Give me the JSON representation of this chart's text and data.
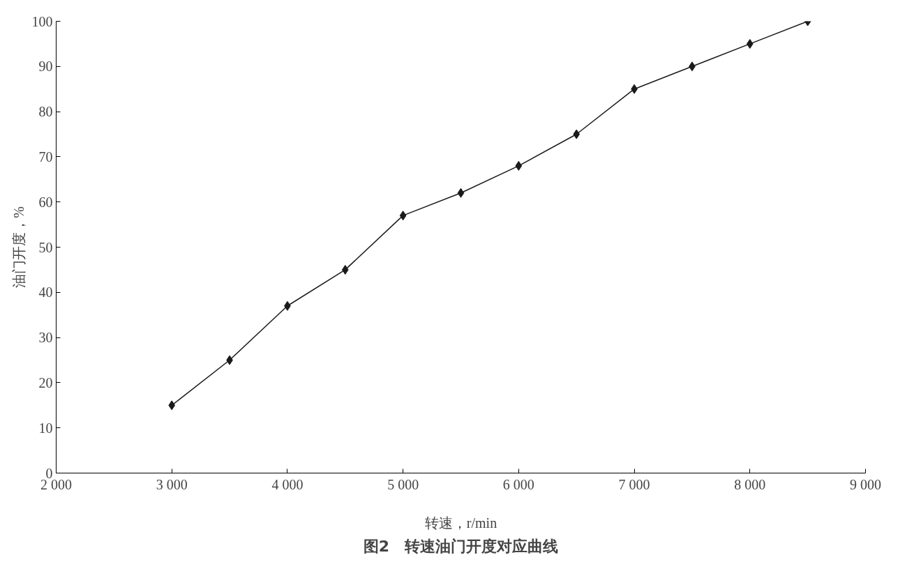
{
  "chart_data": {
    "type": "line",
    "title": "图2　转速油门开度对应曲线",
    "xlabel": "转速，r/min",
    "ylabel": "油门开度，%",
    "x": [
      3000,
      3500,
      4000,
      4500,
      5000,
      5500,
      6000,
      6500,
      7000,
      7500,
      8000,
      8500
    ],
    "series": [
      {
        "color": "#1a1a1a",
        "values": [
          15,
          25,
          37,
          45,
          57,
          62,
          68,
          75,
          85,
          90,
          95,
          100
        ]
      }
    ],
    "xlim": [
      2000,
      9000
    ],
    "xticks": [
      {
        "value": 2000,
        "label": "2 000"
      },
      {
        "value": 3000,
        "label": "3 000"
      },
      {
        "value": 4000,
        "label": "4 000"
      },
      {
        "value": 5000,
        "label": "5 000"
      },
      {
        "value": 6000,
        "label": "6 000"
      },
      {
        "value": 7000,
        "label": "7 000"
      },
      {
        "value": 8000,
        "label": "8 000"
      },
      {
        "value": 9000,
        "label": "9 000"
      }
    ],
    "ylim": [
      0,
      100
    ],
    "yticks": [
      0,
      10,
      20,
      30,
      40,
      50,
      60,
      70,
      80,
      90,
      100
    ],
    "grid": false,
    "marker": "diamond",
    "line_style": "solid"
  }
}
